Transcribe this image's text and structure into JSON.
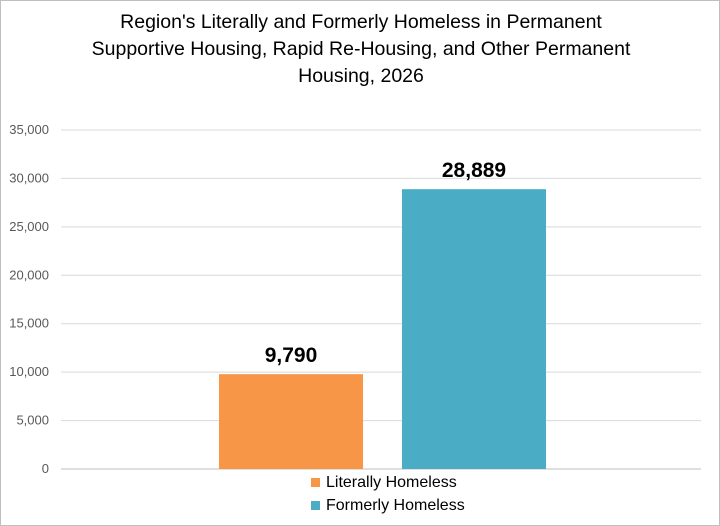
{
  "chart_data": {
    "type": "bar",
    "title_lines": [
      "Region's Literally and Formerly Homeless in Permanent",
      "Supportive Housing, Rapid Re-Housing, and Other Permanent",
      "Housing, 2026"
    ],
    "categories": [
      ""
    ],
    "series": [
      {
        "name": "Literally Homeless",
        "values": [
          9790
        ],
        "value_label": "9,790",
        "color": "#f79646"
      },
      {
        "name": "Formerly Homeless",
        "values": [
          28889
        ],
        "value_label": "28,889",
        "color": "#4bacc6"
      }
    ],
    "ylim": [
      0,
      35000
    ],
    "yticks": [
      0,
      5000,
      10000,
      15000,
      20000,
      25000,
      30000,
      35000
    ],
    "ytick_labels": [
      "0",
      "5,000",
      "10,000",
      "15,000",
      "20,000",
      "25,000",
      "30,000",
      "35,000"
    ],
    "grid": true,
    "legend_position": "bottom",
    "xlabel": "",
    "ylabel": ""
  }
}
